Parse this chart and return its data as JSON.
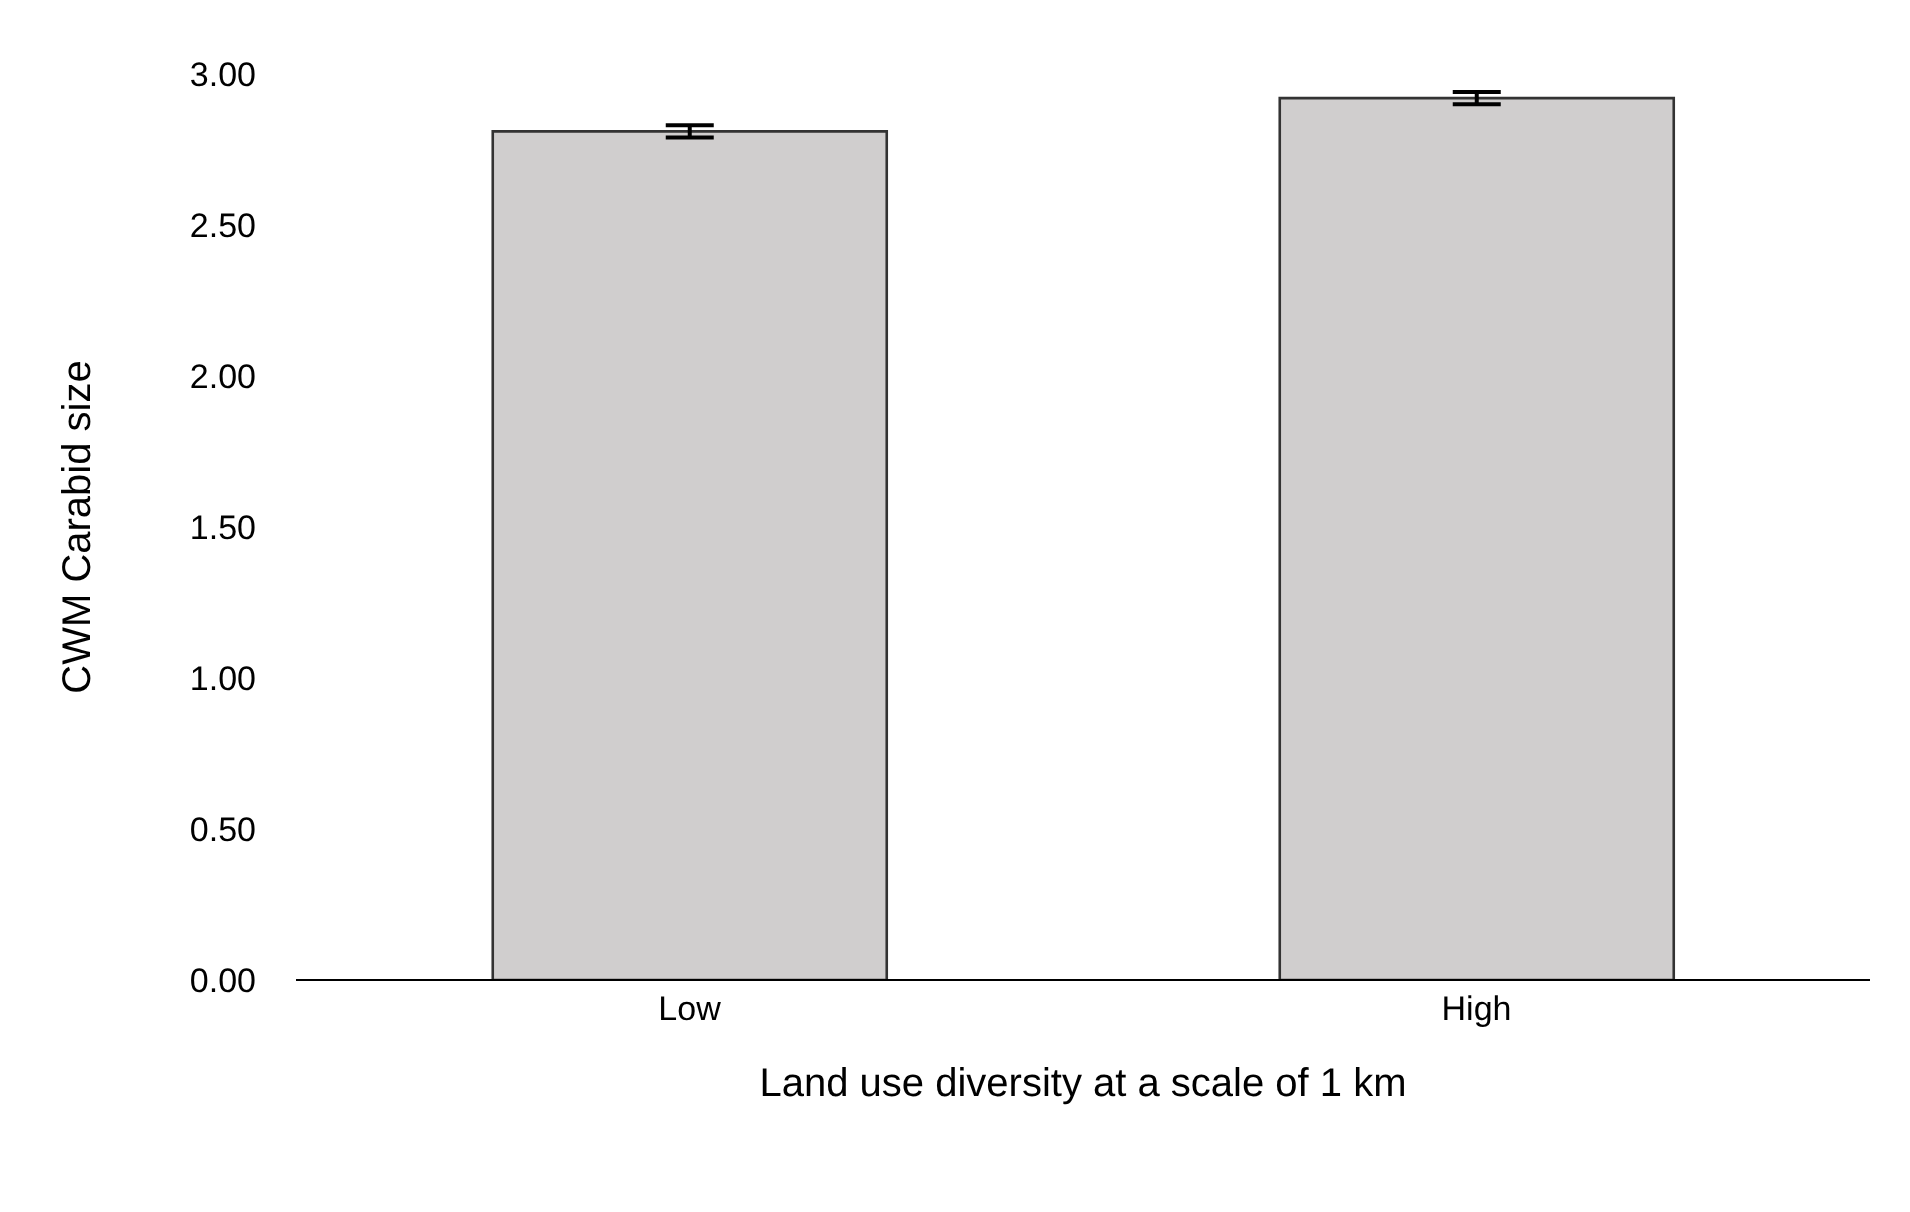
{
  "chart_data": {
    "type": "bar",
    "xlabel": "Land use diversity at a scale of 1 km",
    "ylabel": "CWM Carabid size",
    "categories": [
      "Low",
      "High"
    ],
    "values": [
      2.81,
      2.92
    ],
    "errors": [
      0.02,
      0.02
    ],
    "color": "#d0cece",
    "ylim": [
      0,
      3
    ],
    "yticks": [
      {
        "value": 0,
        "label": "0.00"
      },
      {
        "value": 0.5,
        "label": "0.50"
      },
      {
        "value": 1,
        "label": "1.00"
      },
      {
        "value": 1.5,
        "label": "1.50"
      },
      {
        "value": 2,
        "label": "2.00"
      },
      {
        "value": 2.5,
        "label": "2.50"
      },
      {
        "value": 3,
        "label": "3.00"
      }
    ],
    "grid": false
  }
}
